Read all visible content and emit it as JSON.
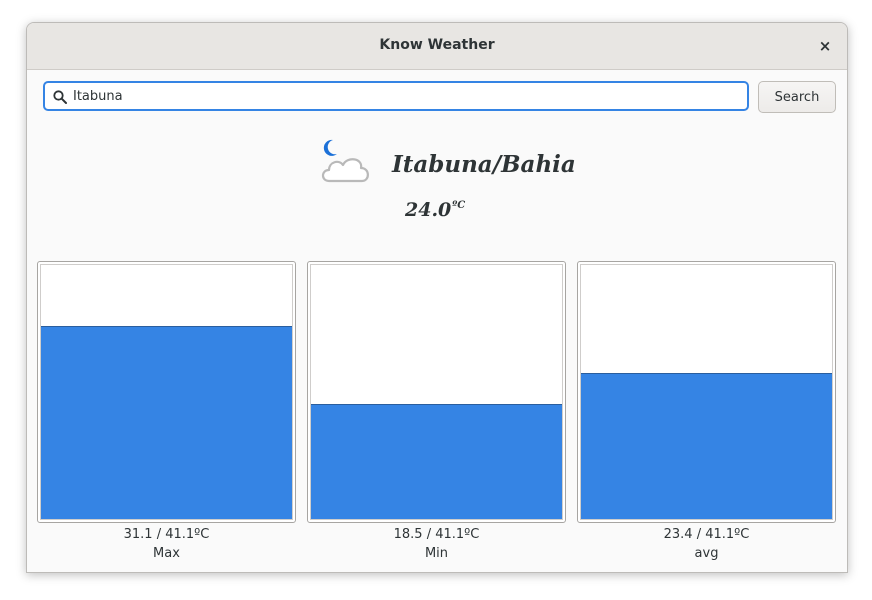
{
  "window": {
    "title": "Know Weather",
    "close_glyph": "×"
  },
  "search": {
    "value": "Itabuna",
    "button_label": "Search",
    "icon": "search-icon"
  },
  "weather": {
    "icon": "night-cloudy-icon",
    "location": "Itabuna/Bahia",
    "temperature": "24.0",
    "unit": "ºC"
  },
  "bars": [
    {
      "value_text": "31.1 / 41.1ºC",
      "label": "Max",
      "value": 31.1,
      "max": 41.1
    },
    {
      "value_text": "18.5 / 41.1ºC",
      "label": "Min",
      "value": 18.5,
      "max": 41.1
    },
    {
      "value_text": "23.4 / 41.1ºC",
      "label": "avg",
      "value": 23.4,
      "max": 41.1
    }
  ],
  "colors": {
    "accent": "#3584e4"
  }
}
